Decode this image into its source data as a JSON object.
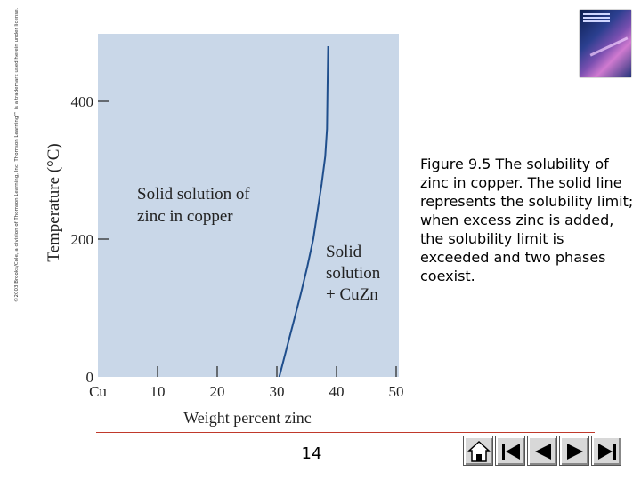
{
  "copyright_text": "©2003 Brooks/Cole, a division of Thomson Learning, Inc. Thomson Learning™ is a trademark used herein under license.",
  "caption": {
    "figure_label": "Figure 9.5",
    "text": "The solubility of zinc in copper. The solid line represents the solubility limit; when excess zinc is added, the solubility limit is exceeded and two phases coexist."
  },
  "page_number": "14",
  "nav_buttons": [
    "home-icon",
    "previous-end-icon",
    "previous-icon",
    "next-icon",
    "next-end-icon"
  ],
  "chart_data": {
    "type": "line",
    "xlabel": "Weight percent zinc",
    "ylabel": "Temperature (°C)",
    "xlim": [
      0,
      50
    ],
    "ylim": [
      0,
      480
    ],
    "x_ticks": [
      0,
      10,
      20,
      30,
      40,
      50
    ],
    "x_tick_labels": [
      "Cu",
      "10",
      "20",
      "30",
      "40",
      "50"
    ],
    "y_ticks": [
      0,
      200,
      400
    ],
    "y_tick_labels": [
      "0",
      "200",
      "400"
    ],
    "grid": false,
    "background_color": "#c9d7e8",
    "line_color": "#1f4e8c",
    "series": [
      {
        "x": [
          30.4,
          31.6,
          32.8,
          34.0,
          35.1,
          36.1,
          36.8,
          37.5,
          38.1,
          38.4,
          38.5,
          38.6
        ],
        "y": [
          0,
          40,
          80,
          120,
          160,
          200,
          240,
          280,
          320,
          360,
          420,
          480
        ]
      }
    ],
    "region_labels": [
      {
        "lines": [
          "Solid solution of",
          "zinc in copper"
        ]
      },
      {
        "lines": [
          "Solid",
          "solution",
          "+ CuZn"
        ]
      }
    ]
  }
}
